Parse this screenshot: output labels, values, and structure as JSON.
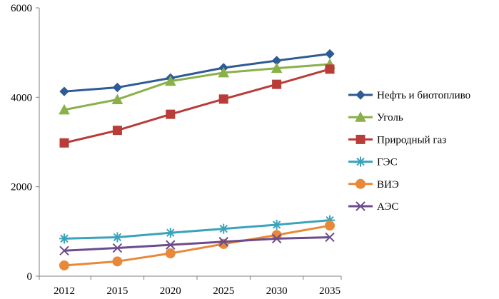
{
  "chart_data": {
    "type": "line",
    "title": "",
    "xlabel": "",
    "ylabel": "",
    "categories": [
      "2012",
      "2015",
      "2020",
      "2025",
      "2030",
      "2035"
    ],
    "ylim": [
      0,
      6000
    ],
    "yticks": [
      0,
      2000,
      4000,
      6000
    ],
    "ytick_labels": [
      "0",
      "2000",
      "4000",
      "6000"
    ],
    "grid": false,
    "legend_position": "right",
    "series": [
      {
        "name": "Нефть и биотопливо",
        "color": "#2E5B94",
        "marker": "diamond",
        "values": [
          4130,
          4220,
          4430,
          4660,
          4820,
          4970
        ]
      },
      {
        "name": "Уголь",
        "color": "#8AB04A",
        "marker": "triangle",
        "values": [
          3720,
          3950,
          4360,
          4550,
          4650,
          4740
        ]
      },
      {
        "name": "Природный газ",
        "color": "#B83C38",
        "marker": "square",
        "values": [
          2980,
          3260,
          3620,
          3960,
          4290,
          4630
        ]
      },
      {
        "name": "ГЭС",
        "color": "#3AA3BC",
        "marker": "asterisk",
        "values": [
          840,
          870,
          970,
          1060,
          1150,
          1250
        ]
      },
      {
        "name": "ВИЭ",
        "color": "#E8893A",
        "marker": "circle",
        "values": [
          240,
          330,
          510,
          720,
          920,
          1130
        ]
      },
      {
        "name": "АЭС",
        "color": "#6B4C8C",
        "marker": "x",
        "values": [
          570,
          630,
          700,
          770,
          840,
          870
        ]
      }
    ]
  }
}
